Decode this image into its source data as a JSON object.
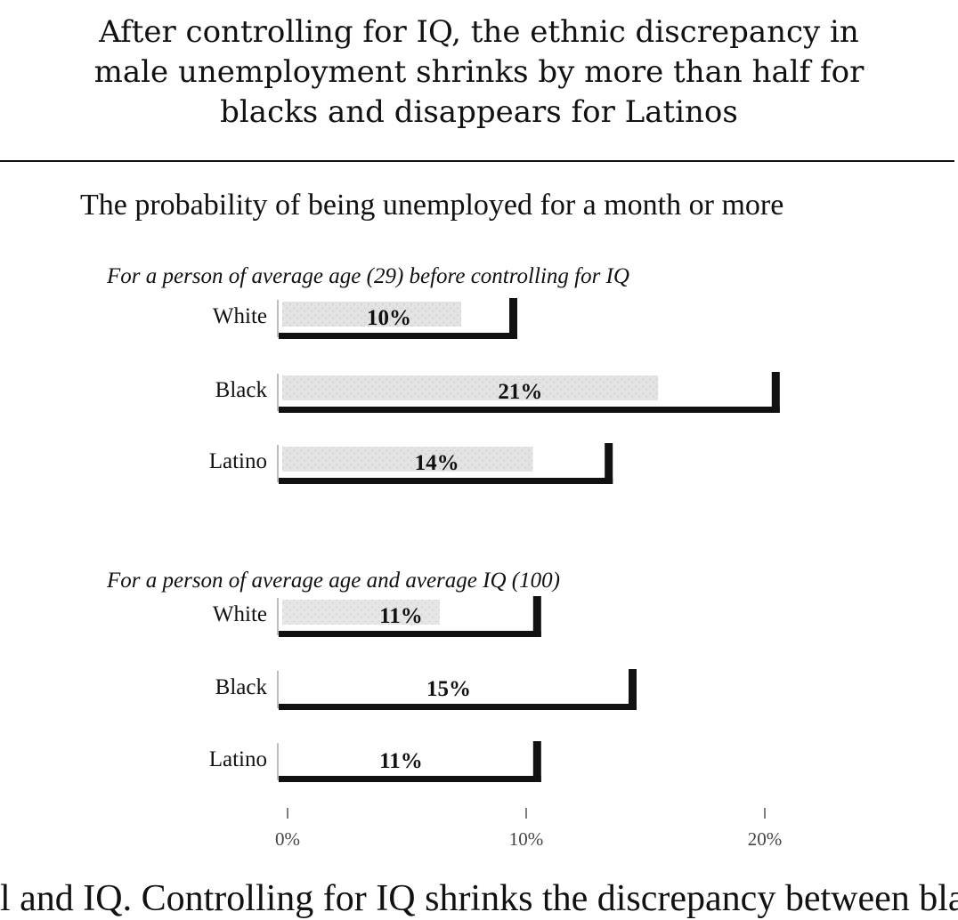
{
  "headline": {
    "lines": [
      "After controlling for IQ, the ethnic discrepancy in",
      "male unemployment shrinks by more than half for",
      "blacks and disappears for Latinos"
    ]
  },
  "chart_data": {
    "type": "bar",
    "orientation": "horizontal",
    "title": "The probability of being unemployed for a month or more",
    "value_unit": "%",
    "xlim": [
      0,
      20
    ],
    "xticks": [
      "0%",
      "10%",
      "20%"
    ],
    "grid": false,
    "groups": [
      {
        "title": "For a person of average age (29) before controlling for IQ",
        "categories": [
          "White",
          "Black",
          "Latino"
        ],
        "values": [
          10,
          21,
          14
        ],
        "labels": [
          "10%",
          "21%",
          "14%"
        ]
      },
      {
        "title": "For a person of average age and average IQ (100)",
        "categories": [
          "White",
          "Black",
          "Latino"
        ],
        "values": [
          11,
          15,
          11
        ],
        "labels": [
          "11%",
          "15%",
          "11%"
        ]
      }
    ]
  },
  "bottom_text": "l and IQ. Controlling for IQ shrinks the discrepancy between black"
}
